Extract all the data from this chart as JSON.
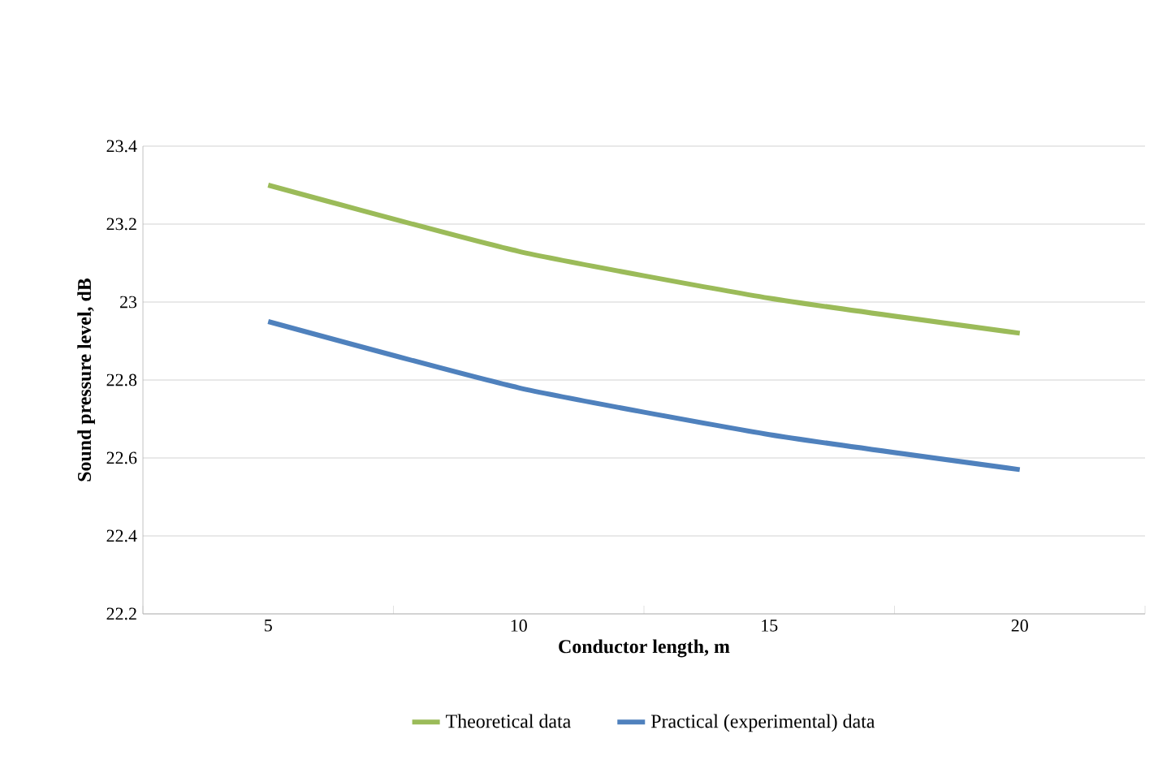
{
  "chart_data": {
    "type": "line",
    "xlabel": "Conductor length, m",
    "ylabel": "Sound pressure level, dB",
    "categories": [
      "5",
      "10",
      "15",
      "20"
    ],
    "series": [
      {
        "name": "Theoretical data",
        "color": "#9bbb59",
        "values": [
          23.3,
          23.13,
          23.01,
          22.92
        ]
      },
      {
        "name": "Practical (experimental) data",
        "color": "#4f81bd",
        "values": [
          22.95,
          22.78,
          22.66,
          22.57
        ]
      }
    ],
    "ylim": [
      22.2,
      23.4
    ],
    "yticks": [
      22.2,
      22.4,
      22.6,
      22.8,
      23,
      23.2,
      23.4
    ],
    "grid": "y",
    "legend": "bottom",
    "marker": "none",
    "line_style": "solid"
  }
}
